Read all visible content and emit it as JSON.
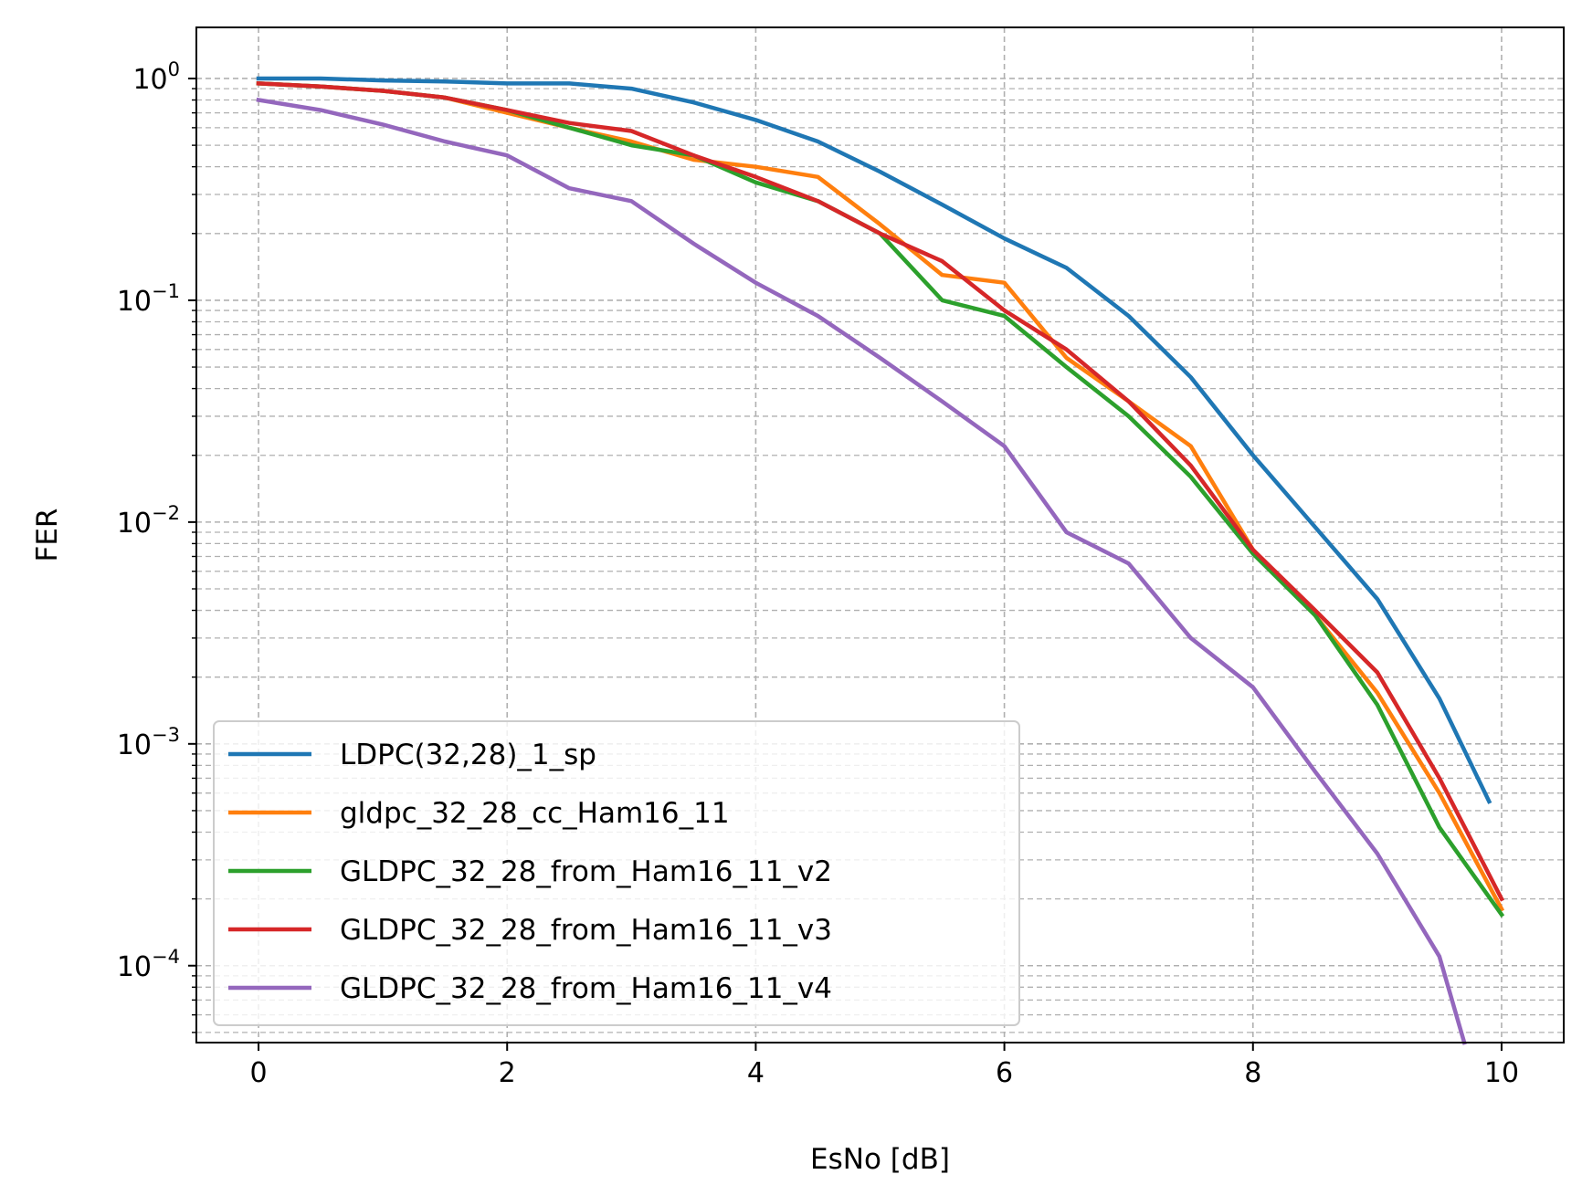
{
  "chart_data": {
    "type": "line",
    "title": "",
    "xlabel": "EsNo [dB]",
    "ylabel": "FER",
    "xlim": [
      -0.5,
      10.5
    ],
    "ylim": [
      4.5e-05,
      1.7
    ],
    "y_scale": "log",
    "grid": "both (major and minor, dashed)",
    "legend_position": "lower-left",
    "x_ticks": [
      "0",
      "2",
      "4",
      "6",
      "8",
      "10"
    ],
    "y_ticks": [
      {
        "base": "10",
        "exp": "0"
      },
      {
        "base": "10",
        "exp": "−1"
      },
      {
        "base": "10",
        "exp": "−2"
      },
      {
        "base": "10",
        "exp": "−3"
      },
      {
        "base": "10",
        "exp": "−4"
      }
    ],
    "series": [
      {
        "name": "LDPC(32,28)_1_sp",
        "color": "#1f77b4",
        "points": [
          [
            0,
            1.0
          ],
          [
            0.5,
            1.0
          ],
          [
            1.0,
            0.98
          ],
          [
            1.5,
            0.97
          ],
          [
            2.0,
            0.95
          ],
          [
            2.5,
            0.95
          ],
          [
            3.0,
            0.9
          ],
          [
            3.5,
            0.78
          ],
          [
            4.0,
            0.65
          ],
          [
            4.5,
            0.52
          ],
          [
            5.0,
            0.38
          ],
          [
            5.5,
            0.27
          ],
          [
            6.0,
            0.19
          ],
          [
            6.5,
            0.14
          ],
          [
            7.0,
            0.085
          ],
          [
            7.5,
            0.045
          ],
          [
            8.0,
            0.02
          ],
          [
            8.5,
            0.0095
          ],
          [
            9.0,
            0.0045
          ],
          [
            9.5,
            0.0016
          ],
          [
            9.9,
            0.00055
          ]
        ]
      },
      {
        "name": "gldpc_32_28_cc_Ham16_11",
        "color": "#ff7f0e",
        "points": [
          [
            0,
            0.95
          ],
          [
            0.5,
            0.92
          ],
          [
            1.0,
            0.88
          ],
          [
            1.5,
            0.82
          ],
          [
            2.0,
            0.7
          ],
          [
            2.5,
            0.6
          ],
          [
            3.0,
            0.52
          ],
          [
            3.5,
            0.43
          ],
          [
            4.0,
            0.4
          ],
          [
            4.5,
            0.36
          ],
          [
            5.0,
            0.22
          ],
          [
            5.5,
            0.13
          ],
          [
            6.0,
            0.12
          ],
          [
            6.5,
            0.055
          ],
          [
            7.0,
            0.035
          ],
          [
            7.5,
            0.022
          ],
          [
            8.0,
            0.0075
          ],
          [
            8.5,
            0.0038
          ],
          [
            9.0,
            0.0017
          ],
          [
            9.5,
            0.0006
          ],
          [
            10.0,
            0.00018
          ]
        ]
      },
      {
        "name": "GLDPC_32_28_from_Ham16_11_v2",
        "color": "#2ca02c",
        "points": [
          [
            0,
            0.95
          ],
          [
            0.5,
            0.92
          ],
          [
            1.0,
            0.88
          ],
          [
            1.5,
            0.82
          ],
          [
            2.0,
            0.72
          ],
          [
            2.5,
            0.6
          ],
          [
            3.0,
            0.5
          ],
          [
            3.5,
            0.45
          ],
          [
            4.0,
            0.34
          ],
          [
            4.5,
            0.28
          ],
          [
            5.0,
            0.2
          ],
          [
            5.5,
            0.1
          ],
          [
            6.0,
            0.085
          ],
          [
            6.5,
            0.05
          ],
          [
            7.0,
            0.03
          ],
          [
            7.5,
            0.016
          ],
          [
            8.0,
            0.0072
          ],
          [
            8.5,
            0.0038
          ],
          [
            9.0,
            0.0015
          ],
          [
            9.5,
            0.00042
          ],
          [
            10.0,
            0.00017
          ]
        ]
      },
      {
        "name": "GLDPC_32_28_from_Ham16_11_v3",
        "color": "#d62728",
        "points": [
          [
            0,
            0.95
          ],
          [
            0.5,
            0.92
          ],
          [
            1.0,
            0.88
          ],
          [
            1.5,
            0.82
          ],
          [
            2.0,
            0.72
          ],
          [
            2.5,
            0.63
          ],
          [
            3.0,
            0.58
          ],
          [
            3.5,
            0.45
          ],
          [
            4.0,
            0.36
          ],
          [
            4.5,
            0.28
          ],
          [
            5.0,
            0.2
          ],
          [
            5.5,
            0.15
          ],
          [
            6.0,
            0.09
          ],
          [
            6.5,
            0.06
          ],
          [
            7.0,
            0.035
          ],
          [
            7.5,
            0.018
          ],
          [
            8.0,
            0.0075
          ],
          [
            8.5,
            0.004
          ],
          [
            9.0,
            0.0021
          ],
          [
            9.5,
            0.0007
          ],
          [
            10.0,
            0.0002
          ]
        ]
      },
      {
        "name": "GLDPC_32_28_from_Ham16_11_v4",
        "color": "#9467bd",
        "points": [
          [
            0,
            0.8
          ],
          [
            0.5,
            0.72
          ],
          [
            1.0,
            0.62
          ],
          [
            1.5,
            0.52
          ],
          [
            2.0,
            0.45
          ],
          [
            2.5,
            0.32
          ],
          [
            3.0,
            0.28
          ],
          [
            3.5,
            0.18
          ],
          [
            4.0,
            0.12
          ],
          [
            4.5,
            0.085
          ],
          [
            5.0,
            0.055
          ],
          [
            5.5,
            0.035
          ],
          [
            6.0,
            0.022
          ],
          [
            6.5,
            0.009
          ],
          [
            7.0,
            0.0065
          ],
          [
            7.5,
            0.003
          ],
          [
            8.0,
            0.0018
          ],
          [
            8.5,
            0.00075
          ],
          [
            9.0,
            0.00032
          ],
          [
            9.5,
            0.00011
          ],
          [
            9.7,
            4.5e-05
          ]
        ]
      }
    ]
  }
}
